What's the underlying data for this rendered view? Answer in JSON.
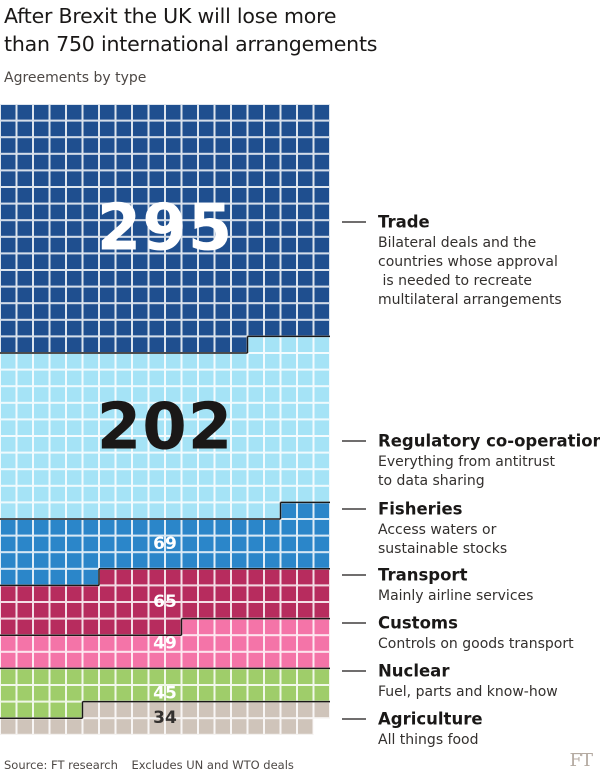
{
  "header": {
    "title": "After Brexit the UK will lose more than 750 international arrangements",
    "subtitle": "Agreements by type"
  },
  "footer": {
    "source": "Source: FT research",
    "note": "Excludes UN and WTO deals",
    "logo": "FT"
  },
  "chart_data": {
    "type": "waffle",
    "unit": "agreement",
    "categories": [
      {
        "label": "Trade",
        "value": 295,
        "color": "#1f4f8f",
        "description": "Bilateral deals and the countries whose approval\n is needed to recreate multilateral arrangements",
        "number_style": "large"
      },
      {
        "label": "Regulatory co-operation",
        "value": 202,
        "color": "#a5e3f6",
        "description": "Everything from antitrust to data sharing",
        "number_style": "large"
      },
      {
        "label": "Fisheries",
        "value": 69,
        "color": "#2b86c9",
        "description": "Access waters or sustainable stocks",
        "number_style": "small"
      },
      {
        "label": "Transport",
        "value": 65,
        "color": "#b72c5e",
        "description": "Mainly airline services",
        "number_style": "small"
      },
      {
        "label": "Customs",
        "value": 49,
        "color": "#f474a8",
        "description": "Controls on goods transport",
        "number_style": "small"
      },
      {
        "label": "Nuclear",
        "value": 45,
        "color": "#9fcd6a",
        "description": "Fuel, parts and know-how",
        "number_style": "small"
      },
      {
        "label": "Agriculture",
        "value": 34,
        "color": "#cfc4ba",
        "description": "All things food",
        "number_style": "small"
      }
    ]
  }
}
